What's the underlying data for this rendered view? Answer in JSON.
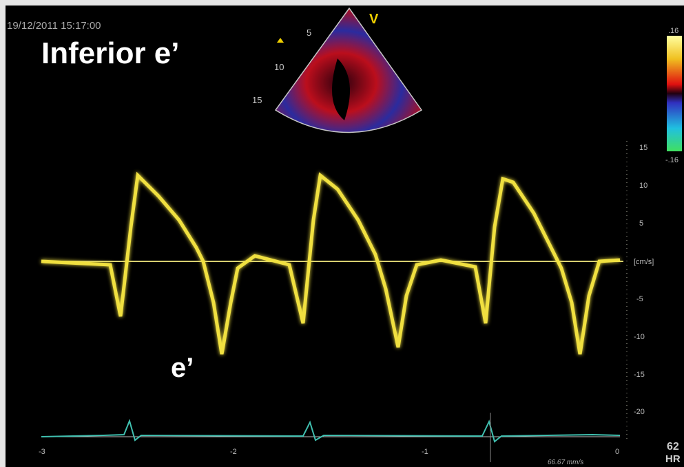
{
  "header": {
    "timestamp": "19/12/2011 15:17:00",
    "title": "Inferior e’",
    "probe_mark": "V"
  },
  "sector": {
    "depth_labels": [
      "5",
      "10",
      "15"
    ]
  },
  "color_bar": {
    "top": ".16",
    "bottom": "-.16"
  },
  "velocity_scale": {
    "labels": [
      "15",
      "10",
      "5",
      "[cm/s]",
      "-5",
      "-10",
      "-15",
      "-20"
    ]
  },
  "time_axis": {
    "labels": [
      "-3",
      "-2",
      "-1",
      "0"
    ],
    "sweep": "66.67 mm/s"
  },
  "heart_rate": {
    "value": "62",
    "label": "HR"
  },
  "annotation": "e’"
}
